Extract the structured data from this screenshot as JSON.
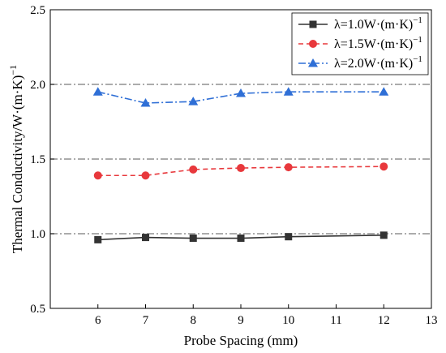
{
  "chart_data": {
    "type": "line",
    "xlabel": "Probe Spacing (mm)",
    "ylabel": "Thermal Conductivity/W·(m·K)",
    "ylabel_exp": "−1",
    "xlim": [
      5,
      13
    ],
    "ylim": [
      0.5,
      2.5
    ],
    "xticks": [
      6,
      7,
      8,
      9,
      10,
      11,
      12,
      13
    ],
    "yticks": [
      0.5,
      1.0,
      1.5,
      2.0,
      2.5
    ],
    "ytick_labels": [
      "0.5",
      "1.0",
      "1.5",
      "2.0",
      "2.5"
    ],
    "reference_lines": [
      1.0,
      1.5,
      2.0
    ],
    "legend_position": "top-right",
    "grid": false,
    "series": [
      {
        "name": "λ=1.0W·(m·K)",
        "name_exp": "−1",
        "color": "#333333",
        "marker": "square",
        "dash": "solid",
        "x": [
          6,
          7,
          8,
          9,
          10,
          12
        ],
        "y": [
          0.96,
          0.975,
          0.97,
          0.97,
          0.98,
          0.99
        ]
      },
      {
        "name": "λ=1.5W·(m·K)",
        "name_exp": "−1",
        "color": "#e8383c",
        "marker": "circle",
        "dash": "dashed",
        "x": [
          6,
          7,
          8,
          9,
          10,
          12
        ],
        "y": [
          1.39,
          1.39,
          1.43,
          1.44,
          1.445,
          1.45
        ]
      },
      {
        "name": "λ=2.0W·(m·K)",
        "name_exp": "−1",
        "color": "#2f6fd6",
        "marker": "triangle",
        "dash": "dashdot",
        "x": [
          6,
          7,
          8,
          9,
          10,
          12
        ],
        "y": [
          1.95,
          1.875,
          1.885,
          1.94,
          1.95,
          1.95
        ]
      }
    ]
  }
}
